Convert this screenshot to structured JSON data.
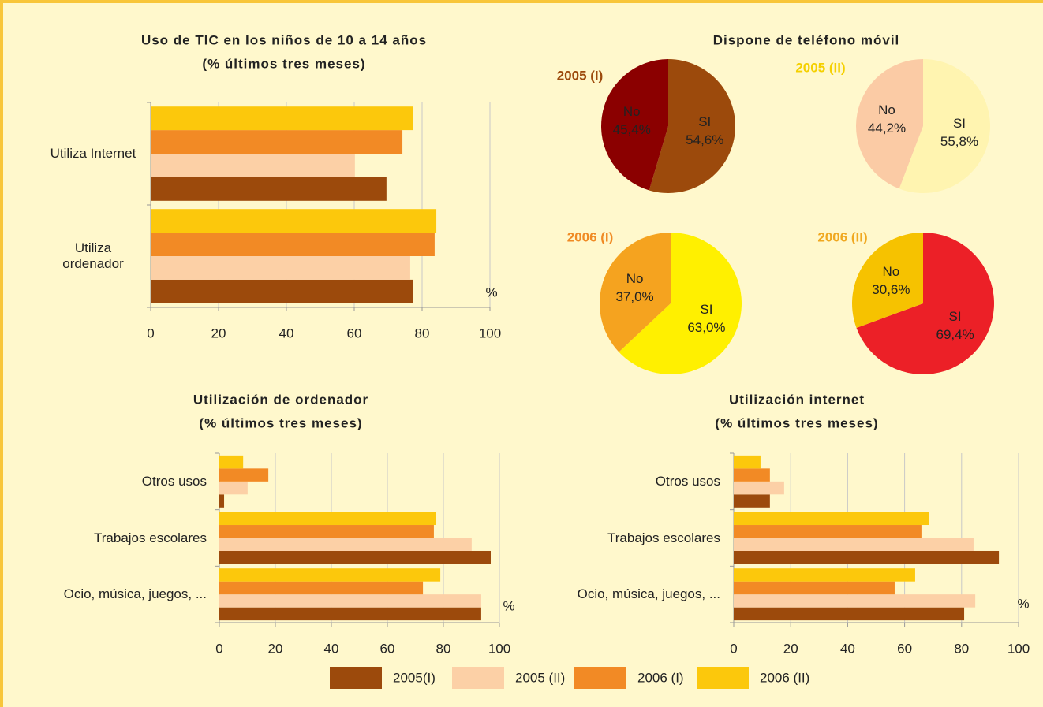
{
  "legend": [
    {
      "name": "2005(I)",
      "color": "#9c4a0c"
    },
    {
      "name": "2005 (II)",
      "color": "#fcd0a6"
    },
    {
      "name": "2006 (I)",
      "color": "#f28a25"
    },
    {
      "name": "2006 (II)",
      "color": "#fcc80c"
    }
  ],
  "chart_data": [
    {
      "type": "bar",
      "title": "Uso de TIC en los niños de 10 a 14 años",
      "subtitle": "(% últimos tres meses)",
      "categories": [
        "Utiliza Internet",
        "Utiliza ordenador"
      ],
      "series": [
        {
          "values": [
            69.5,
            77.4
          ]
        },
        {
          "values": [
            60.2,
            76.5
          ]
        },
        {
          "values": [
            74.2,
            83.7
          ]
        },
        {
          "values": [
            77.4,
            84.2
          ]
        }
      ],
      "xlim": [
        0,
        100
      ],
      "xticks": [
        0,
        20,
        40,
        60,
        80,
        100
      ],
      "xlabel": "%",
      "grid": true
    },
    {
      "type": "pie",
      "title": "Dispone de teléfono móvil",
      "pies": [
        {
          "label": "2005 (I)",
          "label_color": "#9c4a0c",
          "categories": [
            "SI",
            "No"
          ],
          "values": [
            54.6,
            45.4
          ],
          "value_labels": [
            "54,6%",
            "45,4%"
          ],
          "colors": [
            "#9c4a0c",
            "#8b0000"
          ]
        },
        {
          "label": "2005 (II)",
          "label_color": "#f5d000",
          "categories": [
            "SI",
            "No"
          ],
          "values": [
            55.8,
            44.2
          ],
          "value_labels": [
            "55,8%",
            "44,2%"
          ],
          "colors": [
            "#fff4b0",
            "#fbcba5"
          ]
        },
        {
          "label": "2006 (I)",
          "label_color": "#f08a24",
          "categories": [
            "SI",
            "No"
          ],
          "values": [
            63.0,
            37.0
          ],
          "value_labels": [
            "63,0%",
            "37,0%"
          ],
          "colors": [
            "#fff000",
            "#f5a31f"
          ]
        },
        {
          "label": "2006 (II)",
          "label_color": "#f0a820",
          "categories": [
            "SI",
            "No"
          ],
          "values": [
            69.4,
            30.6
          ],
          "value_labels": [
            "69,4%",
            "30,6%"
          ],
          "colors": [
            "#ec2027",
            "#f6c200"
          ]
        }
      ]
    },
    {
      "type": "bar",
      "title": "Utilización de ordenador",
      "subtitle": "(% últimos tres meses)",
      "categories": [
        "Otros usos",
        "Trabajos escolares",
        "Ocio, música, juegos, ..."
      ],
      "series": [
        {
          "values": [
            1.7,
            96.9,
            93.5
          ]
        },
        {
          "values": [
            10.1,
            90.1,
            93.5
          ]
        },
        {
          "values": [
            17.5,
            76.6,
            72.7
          ]
        },
        {
          "values": [
            8.5,
            77.2,
            78.9
          ]
        }
      ],
      "xlim": [
        0,
        100
      ],
      "xticks": [
        0,
        20,
        40,
        60,
        80,
        100
      ],
      "xlabel": "%",
      "grid": true
    },
    {
      "type": "bar",
      "title": "Utilización internet",
      "subtitle": "(% últimos tres meses)",
      "categories": [
        "Otros usos",
        "Trabajos escolares",
        "Ocio, música, juegos, ..."
      ],
      "series": [
        {
          "values": [
            12.7,
            93.1,
            80.9
          ]
        },
        {
          "values": [
            17.7,
            84.2,
            84.8
          ]
        },
        {
          "values": [
            12.7,
            65.9,
            56.5
          ]
        },
        {
          "values": [
            9.4,
            68.7,
            63.7
          ]
        }
      ],
      "xlim": [
        0,
        100
      ],
      "xticks": [
        0,
        20,
        40,
        60,
        80,
        100
      ],
      "xlabel": "%",
      "grid": true
    }
  ]
}
